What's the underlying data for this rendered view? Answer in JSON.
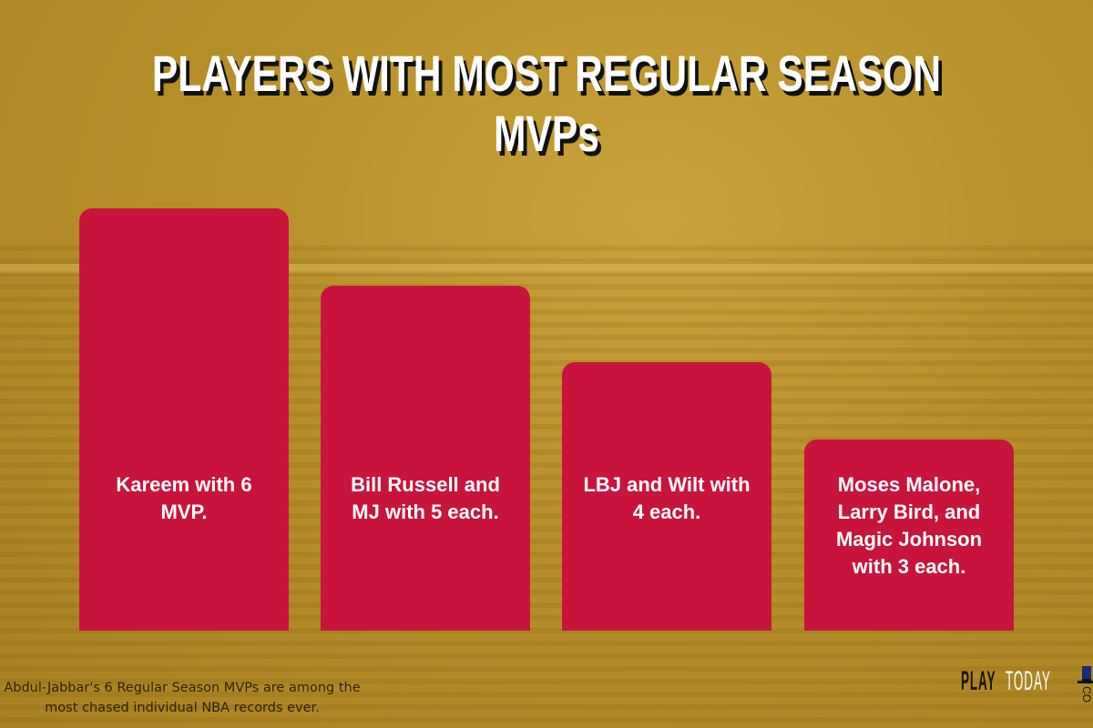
{
  "colors": {
    "background": "#b89029",
    "bar": "#c8143c",
    "title": "#ffffff"
  },
  "chart_data": {
    "type": "bar",
    "title": "PLAYERS WITH MOST REGULAR SEASON MVPs",
    "categories": [
      "Kareem with 6 MVP.",
      "Bill Russell and MJ with 5 each.",
      "LBJ and Wilt with 4 each.",
      "Moses Malone, Larry Bird, and Magic Johnson with 3 each."
    ],
    "values": [
      6,
      5,
      4,
      3
    ],
    "xlabel": "",
    "ylabel": "",
    "grid": false
  },
  "footer": {
    "note": "Abdul-Jabbar's 6 Regular Season MVPs are among the most chased individual NBA records ever."
  },
  "logo": {
    "play": "PLAY",
    "today": "TODAY",
    "co": "CO"
  }
}
